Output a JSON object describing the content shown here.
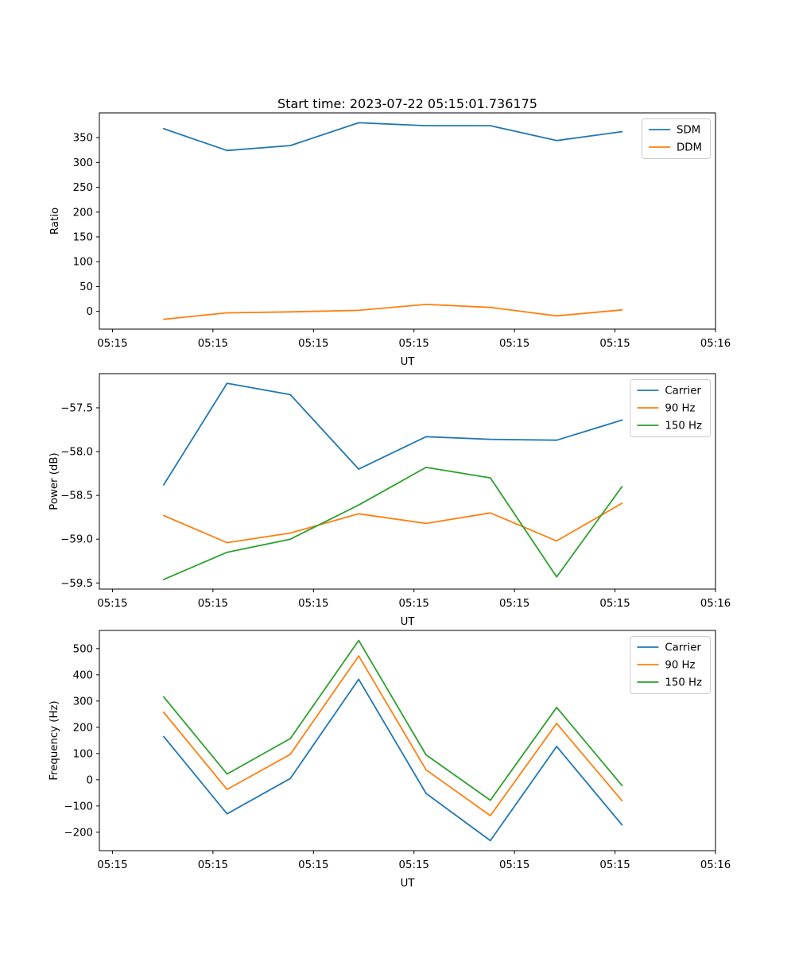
{
  "figure": {
    "background": "#ffffff",
    "text_color": "#000000",
    "spine_color": "#000000",
    "legend_frame_color": "#cccccc"
  },
  "chart_data": [
    {
      "type": "line",
      "title": "Start time: 2023-07-22 05:15:01.736175",
      "xlabel": "UT",
      "ylabel": "Ratio",
      "grid": false,
      "legend_position": "upper right",
      "x_seconds": [
        5.1,
        11.4,
        17.7,
        24.5,
        31.2,
        37.6,
        44.2,
        50.7
      ],
      "xlim": [
        -1.3,
        60
      ],
      "xticks": [
        {
          "value": 0,
          "label": "05:15"
        },
        {
          "value": 10,
          "label": "05:15"
        },
        {
          "value": 20,
          "label": "05:15"
        },
        {
          "value": 30,
          "label": "05:15"
        },
        {
          "value": 40,
          "label": "05:15"
        },
        {
          "value": 50,
          "label": "05:15"
        },
        {
          "value": 60,
          "label": "05:16"
        }
      ],
      "ylim": [
        -35.8,
        399.8
      ],
      "yticks": [
        {
          "value": 0,
          "label": "0"
        },
        {
          "value": 50,
          "label": "50"
        },
        {
          "value": 100,
          "label": "100"
        },
        {
          "value": 150,
          "label": "150"
        },
        {
          "value": 200,
          "label": "200"
        },
        {
          "value": 250,
          "label": "250"
        },
        {
          "value": 300,
          "label": "300"
        },
        {
          "value": 350,
          "label": "350"
        }
      ],
      "series": [
        {
          "name": "SDM",
          "color": "#1f77b4",
          "values": [
            368,
            324,
            334,
            380,
            374,
            374,
            344,
            362
          ]
        },
        {
          "name": "DDM",
          "color": "#ff7f0e",
          "values": [
            -16,
            -3,
            -1,
            2,
            14,
            8,
            -9,
            3
          ]
        }
      ]
    },
    {
      "type": "line",
      "title": "",
      "xlabel": "UT",
      "ylabel": "Power (dB)",
      "grid": false,
      "legend_position": "upper right",
      "x_seconds": [
        5.1,
        11.4,
        17.7,
        24.5,
        31.2,
        37.6,
        44.2,
        50.7
      ],
      "xlim": [
        -1.3,
        60
      ],
      "xticks": [
        {
          "value": 0,
          "label": "05:15"
        },
        {
          "value": 10,
          "label": "05:15"
        },
        {
          "value": 20,
          "label": "05:15"
        },
        {
          "value": 30,
          "label": "05:15"
        },
        {
          "value": 40,
          "label": "05:15"
        },
        {
          "value": 50,
          "label": "05:15"
        },
        {
          "value": 60,
          "label": "05:16"
        }
      ],
      "ylim": [
        -59.57,
        -57.11
      ],
      "yticks": [
        {
          "value": -57.5,
          "label": "−57.5"
        },
        {
          "value": -58.0,
          "label": "−58.0"
        },
        {
          "value": -58.5,
          "label": "−58.5"
        },
        {
          "value": -59.0,
          "label": "−59.0"
        },
        {
          "value": -59.5,
          "label": "−59.5"
        }
      ],
      "series": [
        {
          "name": "Carrier",
          "color": "#1f77b4",
          "values": [
            -58.38,
            -57.22,
            -57.35,
            -58.2,
            -57.83,
            -57.86,
            -57.87,
            -57.64
          ]
        },
        {
          "name": "90 Hz",
          "color": "#ff7f0e",
          "values": [
            -58.73,
            -59.04,
            -58.93,
            -58.71,
            -58.82,
            -58.7,
            -59.02,
            -58.59
          ]
        },
        {
          "name": "150 Hz",
          "color": "#2ca02c",
          "values": [
            -59.46,
            -59.15,
            -59.0,
            -58.61,
            -58.18,
            -58.3,
            -59.43,
            -58.4
          ]
        }
      ]
    },
    {
      "type": "line",
      "title": "",
      "xlabel": "UT",
      "ylabel": "Frequency (Hz)",
      "grid": false,
      "legend_position": "upper right",
      "x_seconds": [
        5.1,
        11.4,
        17.7,
        24.5,
        31.2,
        37.6,
        44.2,
        50.7
      ],
      "xlim": [
        -1.3,
        60
      ],
      "xticks": [
        {
          "value": 0,
          "label": "05:15"
        },
        {
          "value": 10,
          "label": "05:15"
        },
        {
          "value": 20,
          "label": "05:15"
        },
        {
          "value": 30,
          "label": "05:15"
        },
        {
          "value": 40,
          "label": "05:15"
        },
        {
          "value": 50,
          "label": "05:15"
        },
        {
          "value": 60,
          "label": "05:16"
        }
      ],
      "ylim": [
        -270.2,
        569.2
      ],
      "yticks": [
        {
          "value": 500,
          "label": "500"
        },
        {
          "value": 400,
          "label": "400"
        },
        {
          "value": 300,
          "label": "300"
        },
        {
          "value": 200,
          "label": "200"
        },
        {
          "value": 100,
          "label": "100"
        },
        {
          "value": 0,
          "label": "0"
        },
        {
          "value": -100,
          "label": "−100"
        },
        {
          "value": -200,
          "label": "−200"
        }
      ],
      "series": [
        {
          "name": "Carrier",
          "color": "#1f77b4",
          "values": [
            165,
            -130,
            5,
            383,
            -52,
            -232,
            127,
            -172
          ]
        },
        {
          "name": "90 Hz",
          "color": "#ff7f0e",
          "values": [
            257,
            -37,
            97,
            472,
            38,
            -137,
            215,
            -80
          ]
        },
        {
          "name": "150 Hz",
          "color": "#2ca02c",
          "values": [
            316,
            22,
            157,
            531,
            95,
            -78,
            276,
            -22
          ]
        }
      ]
    }
  ]
}
